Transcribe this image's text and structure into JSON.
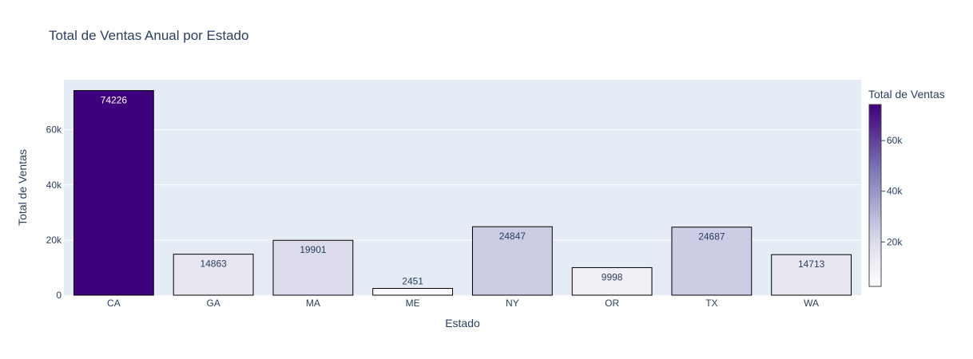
{
  "chart_data": {
    "type": "bar",
    "title": "Total de Ventas Anual por Estado",
    "xlabel": "Estado",
    "ylabel": "Total de Ventas",
    "categories": [
      "CA",
      "GA",
      "MA",
      "ME",
      "NY",
      "OR",
      "TX",
      "WA"
    ],
    "values": [
      74226,
      14863,
      19901,
      2451,
      24847,
      9998,
      24687,
      14713
    ],
    "value_labels": [
      "74226",
      "14863",
      "19901",
      "2451",
      "24847",
      "9998",
      "24687",
      "14713"
    ],
    "ylim": [
      0,
      78133
    ],
    "yticks": [
      0,
      20000,
      40000,
      60000
    ],
    "ytick_labels": [
      "0",
      "20k",
      "40k",
      "60k"
    ],
    "grid": true,
    "colorbar": {
      "title": "Total de Ventas",
      "range": [
        2451,
        74226
      ],
      "ticks": [
        20000,
        40000,
        60000
      ],
      "tick_labels": [
        "20k",
        "40k",
        "60k"
      ],
      "colorscale": [
        "#fcfbfd",
        "#efedf5",
        "#dadaeb",
        "#bcbddc",
        "#9e9ac8",
        "#807dba",
        "#6a51a3",
        "#54278f",
        "#3f007d"
      ]
    },
    "colors": {
      "plot_bg": "#e5ecf6",
      "bar_outline": "#000000",
      "text": "#2a3f5f"
    }
  }
}
